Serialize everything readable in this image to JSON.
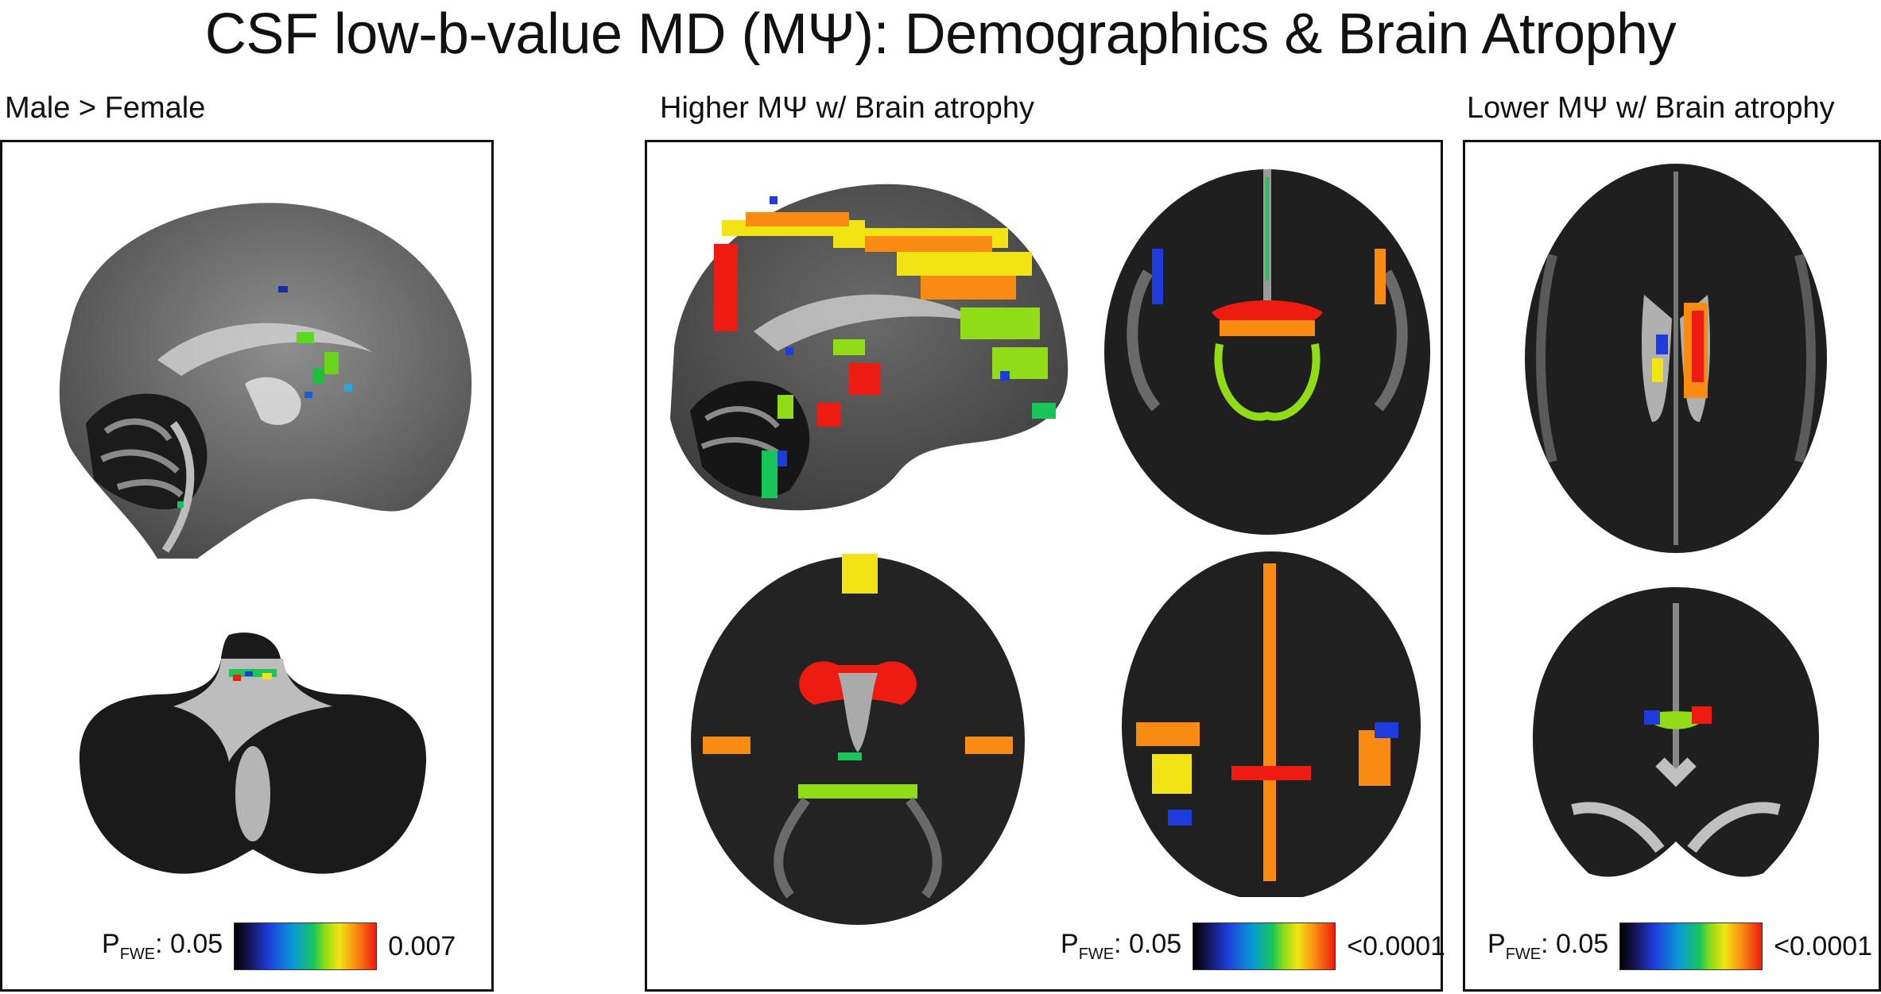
{
  "title": "CSF low-b-value MD (MΨ): Demographics & Brain Atrophy",
  "panels": [
    {
      "label": "Male > Female",
      "legend": {
        "p_label": "P",
        "p_sub": "FWE",
        "p_value": ": 0.05",
        "max_label": "0.007"
      }
    },
    {
      "label": "Higher MΨ w/ Brain atrophy",
      "legend": {
        "p_label": "P",
        "p_sub": "FWE",
        "p_value": ": 0.05",
        "max_label": "<0.0001"
      }
    },
    {
      "label": "Lower MΨ w/ Brain atrophy",
      "legend": {
        "p_label": "P",
        "p_sub": "FWE",
        "p_value": ": 0.05",
        "max_label": "<0.0001"
      }
    }
  ],
  "colorbar": {
    "colors": [
      "#000000",
      "#1e3cdc",
      "#18c55a",
      "#f2e414",
      "#ee1c10"
    ]
  }
}
